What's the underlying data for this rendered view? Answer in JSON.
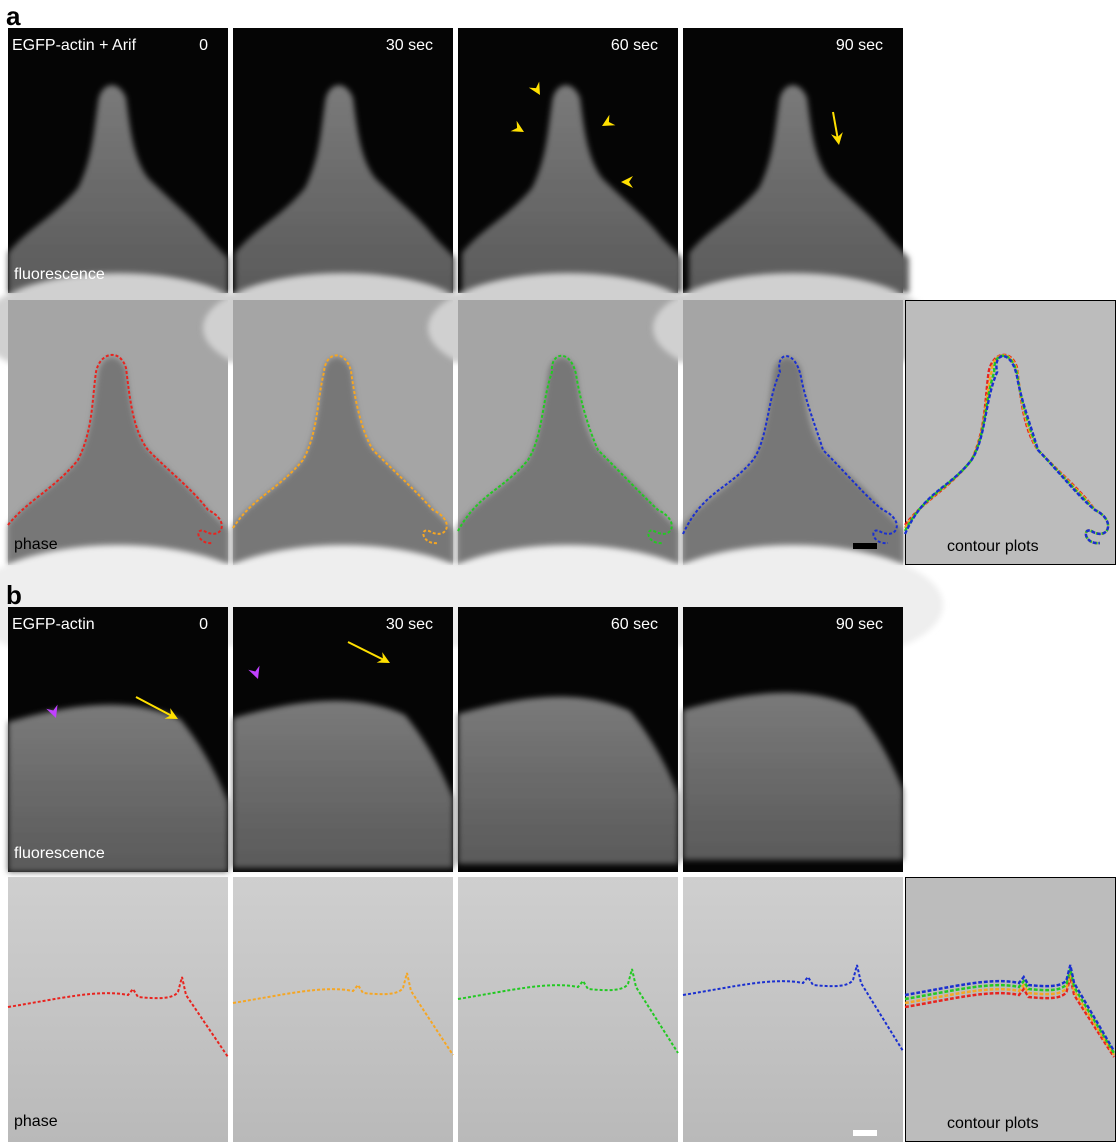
{
  "panels": [
    {
      "label": "a",
      "condition": "EGFP-actin + Arif",
      "times": [
        "0",
        "30 sec",
        "60 sec",
        "90 sec"
      ],
      "fluorescence_label": "fluorescence",
      "phase_label": "phase",
      "contour_label": "contour plots"
    },
    {
      "label": "b",
      "condition": "EGFP-actin",
      "times": [
        "0",
        "30 sec",
        "60 sec",
        "90 sec"
      ],
      "fluorescence_label": "fluorescence",
      "phase_label": "phase",
      "contour_label": "contour plots"
    }
  ]
}
